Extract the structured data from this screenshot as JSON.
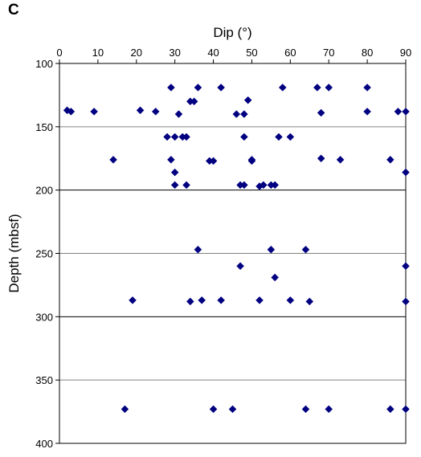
{
  "panel_label": "C",
  "chart_data": {
    "type": "scatter",
    "xlabel": "Dip (°)",
    "ylabel": "Depth (mbsf)",
    "xlim": [
      0,
      90
    ],
    "ylim": [
      100,
      400
    ],
    "y_inverted": true,
    "x_axis_position": "top",
    "x_ticks": [
      "0",
      "10",
      "20",
      "30",
      "40",
      "50",
      "60",
      "70",
      "80",
      "90"
    ],
    "y_ticks": [
      "100",
      "150",
      "200",
      "250",
      "300",
      "350",
      "400"
    ],
    "gridlines": [
      150,
      200,
      250,
      300,
      350
    ],
    "marker": "diamond",
    "marker_color": "#000080",
    "points": [
      [
        29,
        119
      ],
      [
        36,
        119
      ],
      [
        42,
        119
      ],
      [
        58,
        119
      ],
      [
        67,
        119
      ],
      [
        70,
        119
      ],
      [
        80,
        119
      ],
      [
        49,
        129
      ],
      [
        34,
        130
      ],
      [
        35,
        130
      ],
      [
        2,
        137
      ],
      [
        3,
        138
      ],
      [
        9,
        138
      ],
      [
        21,
        137
      ],
      [
        25,
        138
      ],
      [
        31,
        140
      ],
      [
        46,
        140
      ],
      [
        48,
        140
      ],
      [
        68,
        139
      ],
      [
        80,
        138
      ],
      [
        88,
        138
      ],
      [
        90,
        138
      ],
      [
        28,
        158
      ],
      [
        30,
        158
      ],
      [
        32,
        158
      ],
      [
        33,
        158
      ],
      [
        48,
        158
      ],
      [
        57,
        158
      ],
      [
        60,
        158
      ],
      [
        14,
        176
      ],
      [
        29,
        176
      ],
      [
        39,
        177
      ],
      [
        40,
        177
      ],
      [
        50,
        176
      ],
      [
        50,
        177
      ],
      [
        68,
        175
      ],
      [
        73,
        176
      ],
      [
        86,
        176
      ],
      [
        30,
        186
      ],
      [
        90,
        186
      ],
      [
        30,
        196
      ],
      [
        33,
        196
      ],
      [
        47,
        196
      ],
      [
        48,
        196
      ],
      [
        52,
        197
      ],
      [
        53,
        196
      ],
      [
        55,
        196
      ],
      [
        56,
        196
      ],
      [
        36,
        247
      ],
      [
        55,
        247
      ],
      [
        64,
        247
      ],
      [
        47,
        260
      ],
      [
        90,
        260
      ],
      [
        56,
        269
      ],
      [
        19,
        287
      ],
      [
        34,
        288
      ],
      [
        37,
        287
      ],
      [
        42,
        287
      ],
      [
        52,
        287
      ],
      [
        60,
        287
      ],
      [
        65,
        288
      ],
      [
        90,
        288
      ],
      [
        17,
        373
      ],
      [
        40,
        373
      ],
      [
        45,
        373
      ],
      [
        64,
        373
      ],
      [
        70,
        373
      ],
      [
        86,
        373
      ],
      [
        90,
        373
      ]
    ]
  }
}
